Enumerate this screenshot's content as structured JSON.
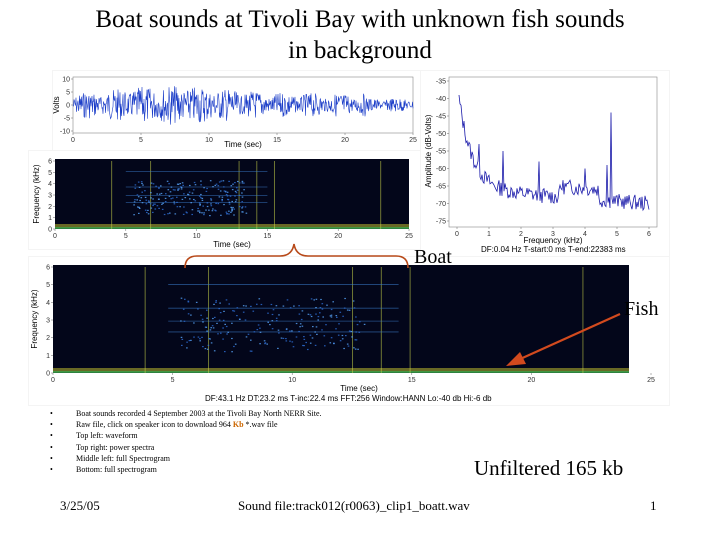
{
  "slide": {
    "title_line1": "Boat sounds at Tivoli Bay with unknown fish sounds",
    "title_line2": "in background"
  },
  "waveform": {
    "ylabel": "Volts",
    "xlabel": "Time (sec)",
    "yticks": [
      "10",
      "5",
      "0",
      "-5",
      "-10"
    ],
    "xticks": [
      "0",
      "5",
      "10",
      "15",
      "20",
      "25"
    ],
    "trace_color": "#1a3cc8"
  },
  "power_spectrum": {
    "ylabel": "Amplitude (dB-Volts)",
    "xlabel": "Frequency (kHz)",
    "yticks": [
      "-35",
      "-40",
      "-45",
      "-50",
      "-55",
      "-60",
      "-65",
      "-70",
      "-75"
    ],
    "xticks": [
      "0",
      "1",
      "2",
      "3",
      "4",
      "5",
      "6"
    ],
    "footer": "DF:0.04 Hz   T-start:0 ms   T-end:22383 ms",
    "trace_color": "#1a1aaa"
  },
  "spectrogram_small": {
    "ylabel": "Frequency (kHz)",
    "xlabel": "Time (sec)",
    "yticks": [
      "6",
      "5",
      "4",
      "3",
      "2",
      "1",
      "0"
    ],
    "xticks": [
      "0",
      "5",
      "10",
      "15",
      "20",
      "25"
    ]
  },
  "spectrogram_full": {
    "ylabel": "Frequency (kHz)",
    "xlabel": "Time (sec)",
    "yticks": [
      "6",
      "5",
      "4",
      "3",
      "2",
      "1",
      "0"
    ],
    "xticks": [
      "0",
      "5",
      "10",
      "15",
      "20",
      "25"
    ],
    "footer": "DF:43.1 Hz   DT:23.2 ms   T-inc:22.4 ms   FFT:256   Window:HANN   Lo:-40 db   Hi:-6 db"
  },
  "annotations": {
    "boat": "Boat",
    "fish": "Fish",
    "brace_color": "#b84a1a",
    "arrow_color": "#d24a1e"
  },
  "bullets": [
    "Boat sounds recorded 4 September 2003 at the Tivoli Bay North NERR Site.",
    "Raw file, click on speaker icon to download 964 ",
    "Top left: waveform",
    "Top right: power spectra",
    "Middle left: full Spectrogram",
    "Bottom: full spectrogram"
  ],
  "bullet_raw_highlight": "Kb",
  "bullet_raw_suffix": " *.wav file",
  "bullet_marker": "•",
  "unfiltered": "Unfiltered 165 kb",
  "footer": {
    "date": "3/25/05",
    "file": "Sound file:track012(r0063)_clip1_boatt.wav",
    "page": "1"
  }
}
